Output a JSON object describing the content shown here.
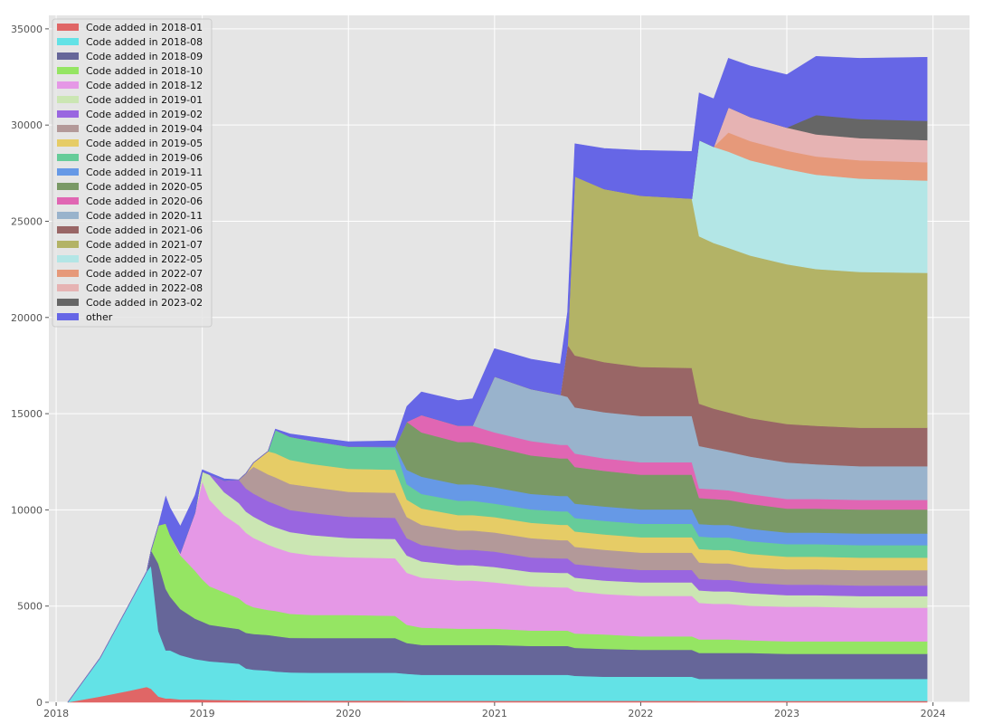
{
  "chart_data": {
    "type": "area",
    "stacked": true,
    "title": "",
    "xlabel": "",
    "ylabel": "",
    "xlim": [
      2017.95,
      2024.25
    ],
    "ylim": [
      0,
      35700
    ],
    "x_ticks": [
      2018,
      2019,
      2020,
      2021,
      2022,
      2023,
      2024
    ],
    "x_tick_labels": [
      "2018",
      "2019",
      "2020",
      "2021",
      "2022",
      "2023",
      "2024"
    ],
    "y_ticks": [
      0,
      5000,
      10000,
      15000,
      20000,
      25000,
      30000,
      35000
    ],
    "y_tick_labels": [
      "0",
      "5000",
      "10000",
      "15000",
      "20000",
      "25000",
      "30000",
      "35000"
    ],
    "grid": true,
    "legend_position": "top-left",
    "x": [
      2018.08,
      2018.3,
      2018.5,
      2018.62,
      2018.65,
      2018.7,
      2018.75,
      2018.78,
      2018.85,
      2018.95,
      2019.0,
      2019.05,
      2019.15,
      2019.25,
      2019.3,
      2019.35,
      2019.45,
      2019.5,
      2019.6,
      2019.75,
      2020.0,
      2020.32,
      2020.4,
      2020.5,
      2020.75,
      2020.85,
      2021.0,
      2021.25,
      2021.45,
      2021.5,
      2021.55,
      2021.75,
      2022.0,
      2022.35,
      2022.4,
      2022.5,
      2022.6,
      2022.75,
      2023.0,
      2023.2,
      2023.5,
      2023.96
    ],
    "series": [
      {
        "name": "Code added in 2018-01",
        "color": "#e06666",
        "values": [
          0,
          300,
          600,
          800,
          700,
          300,
          200,
          200,
          150,
          150,
          140,
          130,
          120,
          110,
          110,
          100,
          100,
          100,
          100,
          90,
          90,
          90,
          80,
          80,
          80,
          80,
          80,
          80,
          80,
          80,
          80,
          80,
          80,
          80,
          70,
          70,
          70,
          70,
          70,
          70,
          70,
          70
        ]
      },
      {
        "name": "Code added in 2018-08",
        "color": "#63e2e6",
        "values": [
          0,
          2000,
          4500,
          6000,
          6400,
          3400,
          2500,
          2500,
          2300,
          2100,
          2050,
          2000,
          1950,
          1900,
          1650,
          1600,
          1550,
          1500,
          1450,
          1450,
          1450,
          1450,
          1400,
          1350,
          1350,
          1350,
          1350,
          1350,
          1350,
          1350,
          1300,
          1250,
          1250,
          1250,
          1150,
          1150,
          1150,
          1150,
          1150,
          1150,
          1150,
          1150
        ]
      },
      {
        "name": "Code added in 2018-09",
        "color": "#666699",
        "values": [
          0,
          0,
          0,
          0,
          800,
          3500,
          3200,
          2800,
          2400,
          2100,
          2000,
          1900,
          1850,
          1800,
          1850,
          1850,
          1850,
          1850,
          1800,
          1800,
          1800,
          1800,
          1600,
          1550,
          1550,
          1550,
          1550,
          1500,
          1500,
          1500,
          1450,
          1450,
          1400,
          1400,
          1350,
          1350,
          1350,
          1350,
          1300,
          1300,
          1300,
          1300
        ]
      },
      {
        "name": "Code added in 2018-10",
        "color": "#95e563",
        "values": [
          0,
          0,
          0,
          0,
          0,
          2000,
          3400,
          3200,
          2800,
          2500,
          2200,
          2000,
          1800,
          1600,
          1500,
          1400,
          1300,
          1300,
          1250,
          1200,
          1200,
          1150,
          950,
          900,
          850,
          850,
          850,
          800,
          800,
          800,
          750,
          750,
          700,
          700,
          700,
          700,
          700,
          650,
          650,
          650,
          650,
          650
        ]
      },
      {
        "name": "Code added in 2018-12",
        "color": "#e598e6",
        "values": [
          0,
          0,
          0,
          0,
          0,
          0,
          0,
          0,
          100,
          3000,
          5100,
          4500,
          4000,
          3800,
          3700,
          3600,
          3400,
          3300,
          3200,
          3100,
          3000,
          3000,
          2700,
          2600,
          2500,
          2500,
          2400,
          2300,
          2250,
          2250,
          2200,
          2100,
          2100,
          2100,
          1900,
          1850,
          1850,
          1800,
          1800,
          1800,
          1750,
          1750
        ]
      },
      {
        "name": "Code added in 2019-01",
        "color": "#cbe6b3",
        "values": [
          0,
          0,
          0,
          0,
          0,
          0,
          0,
          0,
          0,
          0,
          500,
          1300,
          1200,
          1150,
          1100,
          1100,
          1050,
          1050,
          1050,
          1050,
          1000,
          1000,
          900,
          850,
          800,
          800,
          800,
          750,
          750,
          750,
          700,
          700,
          700,
          700,
          650,
          650,
          650,
          650,
          600,
          600,
          600,
          600
        ]
      },
      {
        "name": "Code added in 2019-02",
        "color": "#9966e0",
        "values": [
          0,
          0,
          0,
          0,
          0,
          0,
          0,
          0,
          0,
          0,
          0,
          0,
          600,
          1200,
          1200,
          1200,
          1200,
          1200,
          1150,
          1150,
          1100,
          1100,
          900,
          850,
          800,
          800,
          800,
          750,
          750,
          750,
          700,
          700,
          650,
          650,
          600,
          600,
          600,
          550,
          550,
          550,
          550,
          550
        ]
      },
      {
        "name": "Code added in 2019-04",
        "color": "#b39999",
        "values": [
          0,
          0,
          0,
          0,
          0,
          0,
          0,
          0,
          0,
          0,
          0,
          0,
          0,
          0,
          800,
          1400,
          1400,
          1400,
          1350,
          1350,
          1300,
          1300,
          1100,
          1050,
          1000,
          1000,
          1000,
          1000,
          950,
          950,
          900,
          900,
          900,
          900,
          850,
          850,
          850,
          800,
          800,
          800,
          800,
          800
        ]
      },
      {
        "name": "Code added in 2019-05",
        "color": "#e6cc66",
        "values": [
          0,
          0,
          0,
          0,
          0,
          0,
          0,
          0,
          0,
          0,
          0,
          0,
          0,
          0,
          0,
          200,
          1200,
          1250,
          1250,
          1200,
          1200,
          1200,
          900,
          850,
          800,
          800,
          800,
          800,
          800,
          800,
          800,
          800,
          800,
          800,
          700,
          700,
          700,
          700,
          650,
          650,
          650,
          650
        ]
      },
      {
        "name": "Code added in 2019-06",
        "color": "#66cc99",
        "values": [
          0,
          0,
          0,
          0,
          0,
          0,
          0,
          0,
          0,
          0,
          0,
          0,
          0,
          0,
          0,
          0,
          0,
          1200,
          1200,
          1200,
          1150,
          1150,
          800,
          750,
          750,
          750,
          700,
          700,
          700,
          700,
          700,
          700,
          700,
          700,
          650,
          650,
          650,
          650,
          650,
          650,
          650,
          650
        ]
      },
      {
        "name": "Code added in 2019-11",
        "color": "#6699e6",
        "values": [
          0,
          0,
          0,
          0,
          0,
          0,
          0,
          0,
          0,
          0,
          0,
          0,
          0,
          0,
          0,
          0,
          0,
          0,
          0,
          0,
          0,
          50,
          750,
          900,
          850,
          850,
          850,
          800,
          800,
          800,
          750,
          750,
          750,
          750,
          650,
          650,
          650,
          650,
          600,
          600,
          600,
          600
        ]
      },
      {
        "name": "Code added in 2020-05",
        "color": "#7a9966",
        "values": [
          0,
          0,
          0,
          0,
          0,
          0,
          0,
          0,
          0,
          0,
          0,
          0,
          0,
          0,
          0,
          0,
          0,
          0,
          0,
          0,
          0,
          0,
          2500,
          2300,
          2200,
          2200,
          2100,
          2000,
          1950,
          1950,
          1900,
          1850,
          1800,
          1800,
          1350,
          1350,
          1300,
          1300,
          1250,
          1250,
          1250,
          1250
        ]
      },
      {
        "name": "Code added in 2020-06",
        "color": "#e066b3",
        "values": [
          0,
          0,
          0,
          0,
          0,
          0,
          0,
          0,
          0,
          0,
          0,
          0,
          0,
          0,
          0,
          0,
          0,
          0,
          0,
          0,
          0,
          0,
          0,
          900,
          850,
          850,
          750,
          750,
          700,
          700,
          700,
          650,
          650,
          650,
          500,
          500,
          500,
          500,
          500,
          500,
          500,
          500
        ]
      },
      {
        "name": "Code added in 2020-11",
        "color": "#99b3cc",
        "values": [
          0,
          0,
          0,
          0,
          0,
          0,
          0,
          0,
          0,
          0,
          0,
          0,
          0,
          0,
          0,
          0,
          0,
          0,
          0,
          0,
          0,
          0,
          0,
          0,
          0,
          0,
          2900,
          2700,
          2600,
          2500,
          2400,
          2400,
          2400,
          2400,
          2200,
          2100,
          2000,
          1950,
          1900,
          1800,
          1750,
          1750
        ]
      },
      {
        "name": "Code added in 2021-06",
        "color": "#996666",
        "values": [
          0,
          0,
          0,
          0,
          0,
          0,
          0,
          0,
          0,
          0,
          0,
          0,
          0,
          0,
          0,
          0,
          0,
          0,
          0,
          0,
          0,
          0,
          0,
          0,
          0,
          0,
          0,
          0,
          0,
          2700,
          2700,
          2600,
          2550,
          2500,
          2200,
          2100,
          2050,
          2000,
          2000,
          2000,
          2000,
          2000
        ]
      },
      {
        "name": "Code added in 2021-07",
        "color": "#b3b366",
        "values": [
          0,
          0,
          0,
          0,
          0,
          0,
          0,
          0,
          0,
          0,
          0,
          0,
          0,
          0,
          0,
          0,
          0,
          0,
          0,
          0,
          0,
          0,
          0,
          0,
          0,
          0,
          0,
          0,
          0,
          0,
          9300,
          9000,
          8900,
          8800,
          8700,
          8600,
          8550,
          8450,
          8300,
          8150,
          8100,
          8050
        ]
      },
      {
        "name": "Code added in 2022-05",
        "color": "#b3e6e6",
        "values": [
          0,
          0,
          0,
          0,
          0,
          0,
          0,
          0,
          0,
          0,
          0,
          0,
          0,
          0,
          0,
          0,
          0,
          0,
          0,
          0,
          0,
          0,
          0,
          0,
          0,
          0,
          0,
          0,
          0,
          0,
          0,
          0,
          0,
          0,
          5000,
          5000,
          5000,
          4950,
          4950,
          4900,
          4850,
          4800
        ]
      },
      {
        "name": "Code added in 2022-07",
        "color": "#e6997a",
        "values": [
          0,
          0,
          0,
          0,
          0,
          0,
          0,
          0,
          0,
          0,
          0,
          0,
          0,
          0,
          0,
          0,
          0,
          0,
          0,
          0,
          0,
          0,
          0,
          0,
          0,
          0,
          0,
          0,
          0,
          0,
          0,
          0,
          0,
          0,
          0,
          0,
          1000,
          1000,
          950,
          950,
          950,
          950
        ]
      },
      {
        "name": "Code added in 2022-08",
        "color": "#e6b3b3",
        "values": [
          0,
          0,
          0,
          0,
          0,
          0,
          0,
          0,
          0,
          0,
          0,
          0,
          0,
          0,
          0,
          0,
          0,
          0,
          0,
          0,
          0,
          0,
          0,
          0,
          0,
          0,
          0,
          0,
          0,
          0,
          0,
          0,
          0,
          0,
          0,
          0,
          1300,
          1250,
          1200,
          1150,
          1150,
          1150
        ]
      },
      {
        "name": "Code added in 2023-02",
        "color": "#666666",
        "values": [
          0,
          0,
          0,
          0,
          0,
          0,
          0,
          0,
          0,
          0,
          0,
          0,
          0,
          0,
          0,
          0,
          0,
          0,
          0,
          0,
          0,
          0,
          0,
          0,
          0,
          0,
          0,
          0,
          0,
          0,
          0,
          0,
          0,
          0,
          0,
          0,
          0,
          0,
          0,
          1000,
          1000,
          1000
        ]
      },
      {
        "name": "other",
        "color": "#6666e6",
        "values": [
          0,
          0,
          0,
          0,
          0,
          0,
          1400,
          1400,
          1400,
          900,
          100,
          100,
          100,
          0,
          0,
          0,
          0,
          50,
          150,
          200,
          250,
          300,
          800,
          1200,
          1300,
          1400,
          1450,
          1550,
          1600,
          1700,
          1700,
          2100,
          2350,
          2450,
          2450,
          2500,
          2550,
          2650,
          2750,
          3050,
          3150,
          3300
        ]
      }
    ]
  }
}
